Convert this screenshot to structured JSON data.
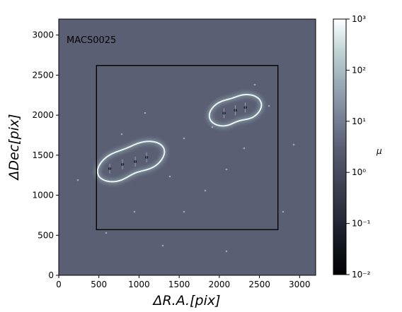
{
  "chart_data": {
    "type": "heatmap",
    "title": "",
    "panel_label": "MACS0025",
    "xlabel": "ΔR.A.[pix]",
    "ylabel": "ΔDec[pix]",
    "xlim": [
      0,
      3200
    ],
    "ylim": [
      0,
      3200
    ],
    "x_ticks": [
      0,
      500,
      1000,
      1500,
      2000,
      2500,
      3000
    ],
    "y_ticks": [
      0,
      500,
      1000,
      1500,
      2000,
      2500,
      3000
    ],
    "box": {
      "x": [
        470,
        2730
      ],
      "y": [
        570,
        2620
      ]
    },
    "colorbar": {
      "label": "μ",
      "scale": "log",
      "range": [
        0.01,
        1000
      ],
      "ticks": [
        {
          "value": 0.01,
          "label": "10⁻²"
        },
        {
          "value": 0.1,
          "label": "10⁻¹"
        },
        {
          "value": 1,
          "label": "10⁰"
        },
        {
          "value": 10,
          "label": "10¹"
        },
        {
          "value": 100,
          "label": "10²"
        },
        {
          "value": 1000,
          "label": "10³"
        }
      ]
    },
    "critical_curves": [
      {
        "name": "",
        "center": [
          900,
          1420
        ],
        "orientation": "elongated"
      },
      {
        "name": "",
        "center": [
          2200,
          2060
        ],
        "orientation": "elongated"
      }
    ],
    "colors": {
      "background": "#5b5f73",
      "critical": "#e8f4f1",
      "box": "#000000"
    }
  }
}
